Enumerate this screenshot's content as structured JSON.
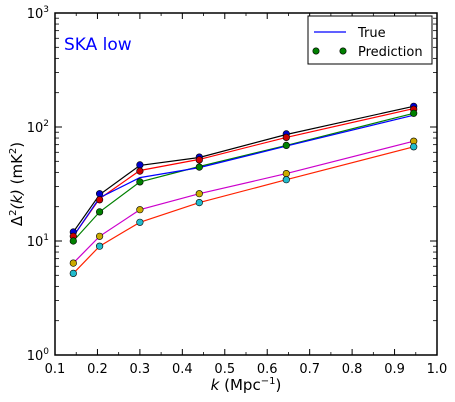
{
  "chart_data": {
    "type": "line",
    "annotation": {
      "text": "SKA low",
      "color": "#0000ff"
    },
    "xlabel": {
      "italic": "k",
      "text": " (Mpc",
      "sup": "−1",
      "close": ")"
    },
    "ylabel": {
      "prefix": "Δ",
      "sup": "2",
      "italic": "(k)",
      "unit": " (mK",
      "unit_sup": "2",
      "close": ")"
    },
    "xlim": [
      0.1,
      1.0
    ],
    "ylim": [
      1,
      1000
    ],
    "yscale": "log",
    "x_ticks": [
      0.1,
      0.2,
      0.3,
      0.4,
      0.5,
      0.6,
      0.7,
      0.8,
      0.9,
      1.0
    ],
    "x_tick_labels": [
      "0.1",
      "0.2",
      "0.3",
      "0.4",
      "0.5",
      "0.6",
      "0.7",
      "0.8",
      "0.9",
      "1.0"
    ],
    "y_ticks": [
      1,
      10,
      100,
      1000
    ],
    "y_tick_labels": [
      {
        "base": "10",
        "exp": "0"
      },
      {
        "base": "10",
        "exp": "1"
      },
      {
        "base": "10",
        "exp": "2"
      },
      {
        "base": "10",
        "exp": "3"
      }
    ],
    "legend": {
      "position": "top-right",
      "entries": [
        {
          "label": "True",
          "kind": "line",
          "color": "#0000ff"
        },
        {
          "label": "Prediction",
          "kind": "marker",
          "color": "#008000"
        }
      ]
    },
    "x": [
      0.143,
      0.205,
      0.3,
      0.44,
      0.645,
      0.945
    ],
    "series": [
      {
        "line_color": "#000000",
        "marker_color": "#0000cc",
        "true": [
          12.0,
          25.5,
          46.0,
          54.0,
          86.0,
          152.0
        ],
        "prediction": [
          12.0,
          26.0,
          46.5,
          54.5,
          87.0,
          152.0
        ]
      },
      {
        "line_color": "#ff0000",
        "marker_color": "#cc0000",
        "true": [
          11.0,
          23.5,
          41.5,
          52.0,
          81.0,
          145.0
        ],
        "prediction": [
          11.0,
          23.0,
          41.0,
          51.5,
          81.0,
          143.0
        ]
      },
      {
        "line_color": "#008000",
        "marker_color": "#008000",
        "true": [
          10.0,
          18.0,
          33.0,
          45.0,
          69.0,
          132.0
        ],
        "prediction": [
          10.0,
          18.0,
          33.0,
          44.5,
          69.0,
          132.0
        ]
      },
      {
        "line_color": "#0000ff",
        "marker_color": null,
        "true": [
          11.0,
          24.0,
          36.0,
          44.0,
          68.0,
          127.0
        ],
        "prediction": null
      },
      {
        "line_color": "#cc00cc",
        "marker_color": "#ccaa00",
        "true": [
          6.4,
          11.0,
          18.8,
          26.0,
          39.0,
          75.0
        ],
        "prediction": [
          6.4,
          11.0,
          18.8,
          26.0,
          39.0,
          75.0
        ]
      },
      {
        "line_color": "#ff2200",
        "marker_color": "#22bbcc",
        "true": [
          5.2,
          9.0,
          14.6,
          21.7,
          34.5,
          67.0
        ],
        "prediction": [
          5.2,
          9.0,
          14.6,
          21.7,
          34.5,
          67.0
        ]
      }
    ]
  }
}
